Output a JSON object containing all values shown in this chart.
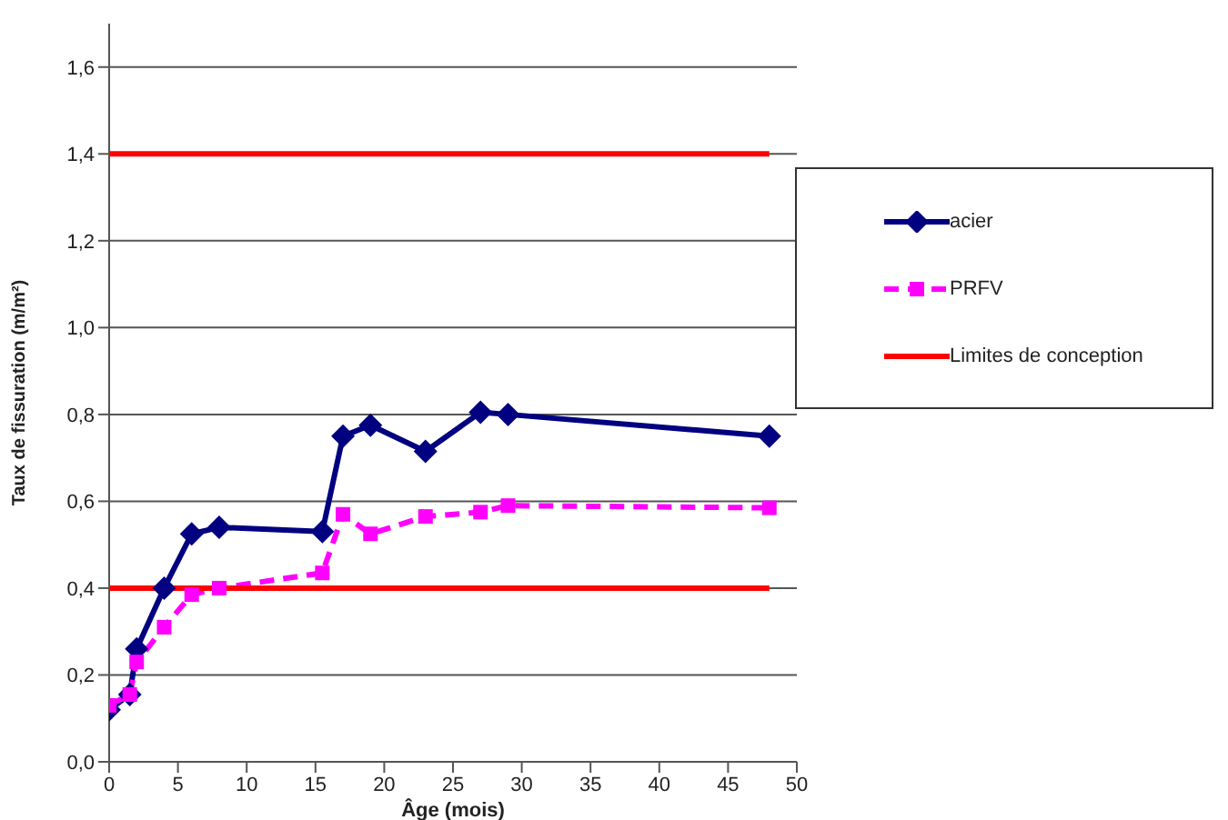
{
  "chart_data": {
    "type": "line",
    "xlabel": "Âge (mois)",
    "ylabel": "Taux de fissuration  (m/m²)",
    "xlim": [
      0,
      50
    ],
    "xticks": [
      0,
      5,
      10,
      15,
      20,
      25,
      30,
      35,
      40,
      45,
      50
    ],
    "ylim": [
      0,
      1.7
    ],
    "yticks": [
      {
        "value": 0,
        "label": "0,0"
      },
      {
        "value": 0.2,
        "label": "0,2"
      },
      {
        "value": 0.4,
        "label": "0,4"
      },
      {
        "value": 0.6,
        "label": "0,6"
      },
      {
        "value": 0.8,
        "label": "0,8"
      },
      {
        "value": 1.0,
        "label": "1,0"
      },
      {
        "value": 1.2,
        "label": "1,2"
      },
      {
        "value": 1.4,
        "label": "1,4"
      },
      {
        "value": 1.6,
        "label": "1,6"
      }
    ],
    "grid": "y",
    "legend": "top right",
    "series": [
      {
        "name": "acier",
        "color": "#000080",
        "marker": "diamond",
        "line_style": "solid",
        "x": [
          0,
          1.5,
          2,
          4,
          6,
          8,
          15.5,
          17,
          19,
          23,
          27,
          29,
          48
        ],
        "values": [
          0.12,
          0.155,
          0.26,
          0.4,
          0.525,
          0.54,
          0.53,
          0.75,
          0.775,
          0.715,
          0.805,
          0.8,
          0.75
        ]
      },
      {
        "name": "PRFV",
        "color": "#ff00ff",
        "marker": "square",
        "line_style": "dashed",
        "x": [
          0,
          1.5,
          2,
          4,
          6,
          8,
          15.5,
          17,
          19,
          23,
          27,
          29,
          48
        ],
        "values": [
          0.13,
          0.155,
          0.23,
          0.31,
          0.385,
          0.4,
          0.435,
          0.57,
          0.525,
          0.565,
          0.575,
          0.59,
          0.585
        ]
      },
      {
        "name": "Limites de conception",
        "color": "#ff0000",
        "marker": "none",
        "line_style": "solid",
        "x": [
          0,
          48
        ],
        "values": [
          1.4,
          1.4
        ]
      },
      {
        "color": "#ff0000",
        "marker": "none",
        "line_style": "solid",
        "x": [
          0,
          48
        ],
        "values": [
          0.4,
          0.4
        ]
      }
    ]
  }
}
